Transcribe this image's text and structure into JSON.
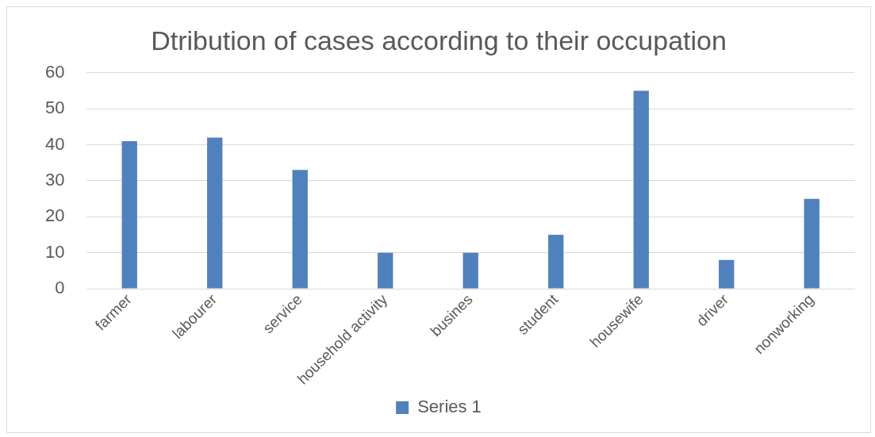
{
  "chart_data": {
    "type": "bar",
    "title": "Dtribution of cases according to their occupation",
    "categories": [
      "farmer",
      "labourer",
      "service",
      "household activity",
      "busines",
      "student",
      "housewife",
      "driver",
      "nonworking"
    ],
    "series": [
      {
        "name": "Series 1",
        "color": "#4f81bd",
        "values": [
          41,
          42,
          33,
          10,
          10,
          15,
          55,
          8,
          25
        ]
      }
    ],
    "ylim": [
      0,
      60
    ],
    "yticks": [
      0,
      10,
      20,
      30,
      40,
      50,
      60
    ],
    "grid": "y",
    "legend": "bottom"
  }
}
